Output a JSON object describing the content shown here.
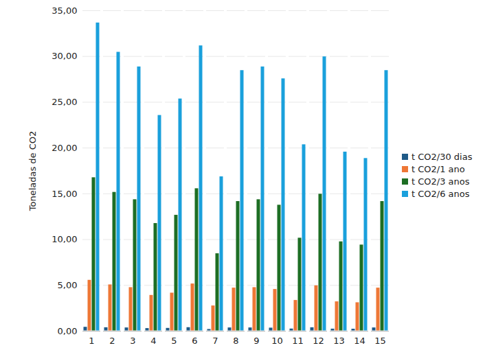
{
  "chart_data": {
    "type": "bar",
    "y_label": "Toneladas de CO2",
    "categories": [
      "1",
      "2",
      "3",
      "4",
      "5",
      "6",
      "7",
      "8",
      "9",
      "10",
      "11",
      "12",
      "13",
      "14",
      "15"
    ],
    "series": [
      {
        "name": "t CO2/30 dias",
        "color": "#1f5a87",
        "values": [
          0.47,
          0.42,
          0.4,
          0.33,
          0.35,
          0.43,
          0.23,
          0.4,
          0.4,
          0.38,
          0.28,
          0.42,
          0.27,
          0.26,
          0.4
        ]
      },
      {
        "name": "t CO2/1 ano",
        "color": "#ee7736",
        "values": [
          5.6,
          5.1,
          4.8,
          3.95,
          4.2,
          5.2,
          2.8,
          4.75,
          4.8,
          4.6,
          3.4,
          5.0,
          3.25,
          3.15,
          4.75
        ]
      },
      {
        "name": "t CO2/3 anos",
        "color": "#1d6e24",
        "values": [
          16.8,
          15.2,
          14.4,
          11.8,
          12.7,
          15.6,
          8.5,
          14.2,
          14.4,
          13.8,
          10.2,
          15.0,
          9.8,
          9.45,
          14.2
        ]
      },
      {
        "name": "t CO2/6 anos",
        "color": "#1aa0dc",
        "values": [
          33.7,
          30.5,
          28.9,
          23.6,
          25.4,
          31.2,
          16.9,
          28.5,
          28.9,
          27.6,
          20.4,
          30.0,
          19.6,
          18.9,
          28.5
        ]
      }
    ],
    "ylim": [
      0,
      35
    ],
    "yticks": [
      {
        "value": 0,
        "label": "0,00"
      },
      {
        "value": 5,
        "label": "5,00"
      },
      {
        "value": 10,
        "label": "10,00"
      },
      {
        "value": 15,
        "label": "15,00"
      },
      {
        "value": 20,
        "label": "20,00"
      },
      {
        "value": 25,
        "label": "25,00"
      },
      {
        "value": 30,
        "label": "30,00"
      },
      {
        "value": 35,
        "label": "35,00"
      }
    ],
    "grid": true,
    "legend": "right"
  }
}
